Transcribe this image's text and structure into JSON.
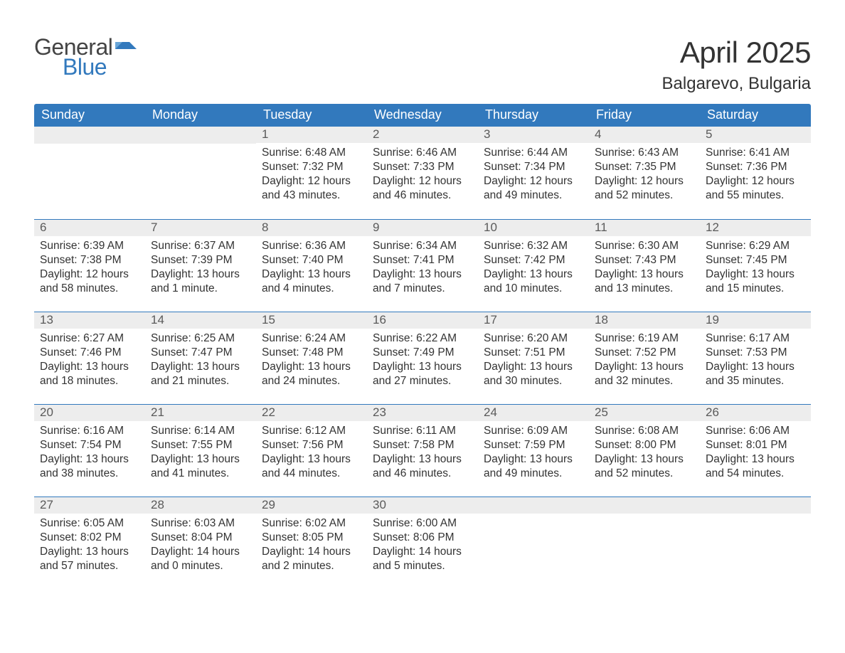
{
  "brand": {
    "word1": "General",
    "word2": "Blue",
    "word1_color": "#444444",
    "word2_color": "#3279bd",
    "flag_color": "#3279bd"
  },
  "title": "April 2025",
  "location": "Balgarevo, Bulgaria",
  "colors": {
    "header_bg": "#3279bd",
    "header_text": "#ffffff",
    "daynum_bg": "#ededed",
    "daynum_border": "#3279bd",
    "body_text": "#333333",
    "daynum_text": "#5a5a5a",
    "page_bg": "#ffffff"
  },
  "weekdays": [
    "Sunday",
    "Monday",
    "Tuesday",
    "Wednesday",
    "Thursday",
    "Friday",
    "Saturday"
  ],
  "weeks": [
    [
      null,
      null,
      {
        "n": "1",
        "sunrise": "6:48 AM",
        "sunset": "7:32 PM",
        "daylight": "12 hours and 43 minutes."
      },
      {
        "n": "2",
        "sunrise": "6:46 AM",
        "sunset": "7:33 PM",
        "daylight": "12 hours and 46 minutes."
      },
      {
        "n": "3",
        "sunrise": "6:44 AM",
        "sunset": "7:34 PM",
        "daylight": "12 hours and 49 minutes."
      },
      {
        "n": "4",
        "sunrise": "6:43 AM",
        "sunset": "7:35 PM",
        "daylight": "12 hours and 52 minutes."
      },
      {
        "n": "5",
        "sunrise": "6:41 AM",
        "sunset": "7:36 PM",
        "daylight": "12 hours and 55 minutes."
      }
    ],
    [
      {
        "n": "6",
        "sunrise": "6:39 AM",
        "sunset": "7:38 PM",
        "daylight": "12 hours and 58 minutes."
      },
      {
        "n": "7",
        "sunrise": "6:37 AM",
        "sunset": "7:39 PM",
        "daylight": "13 hours and 1 minute."
      },
      {
        "n": "8",
        "sunrise": "6:36 AM",
        "sunset": "7:40 PM",
        "daylight": "13 hours and 4 minutes."
      },
      {
        "n": "9",
        "sunrise": "6:34 AM",
        "sunset": "7:41 PM",
        "daylight": "13 hours and 7 minutes."
      },
      {
        "n": "10",
        "sunrise": "6:32 AM",
        "sunset": "7:42 PM",
        "daylight": "13 hours and 10 minutes."
      },
      {
        "n": "11",
        "sunrise": "6:30 AM",
        "sunset": "7:43 PM",
        "daylight": "13 hours and 13 minutes."
      },
      {
        "n": "12",
        "sunrise": "6:29 AM",
        "sunset": "7:45 PM",
        "daylight": "13 hours and 15 minutes."
      }
    ],
    [
      {
        "n": "13",
        "sunrise": "6:27 AM",
        "sunset": "7:46 PM",
        "daylight": "13 hours and 18 minutes."
      },
      {
        "n": "14",
        "sunrise": "6:25 AM",
        "sunset": "7:47 PM",
        "daylight": "13 hours and 21 minutes."
      },
      {
        "n": "15",
        "sunrise": "6:24 AM",
        "sunset": "7:48 PM",
        "daylight": "13 hours and 24 minutes."
      },
      {
        "n": "16",
        "sunrise": "6:22 AM",
        "sunset": "7:49 PM",
        "daylight": "13 hours and 27 minutes."
      },
      {
        "n": "17",
        "sunrise": "6:20 AM",
        "sunset": "7:51 PM",
        "daylight": "13 hours and 30 minutes."
      },
      {
        "n": "18",
        "sunrise": "6:19 AM",
        "sunset": "7:52 PM",
        "daylight": "13 hours and 32 minutes."
      },
      {
        "n": "19",
        "sunrise": "6:17 AM",
        "sunset": "7:53 PM",
        "daylight": "13 hours and 35 minutes."
      }
    ],
    [
      {
        "n": "20",
        "sunrise": "6:16 AM",
        "sunset": "7:54 PM",
        "daylight": "13 hours and 38 minutes."
      },
      {
        "n": "21",
        "sunrise": "6:14 AM",
        "sunset": "7:55 PM",
        "daylight": "13 hours and 41 minutes."
      },
      {
        "n": "22",
        "sunrise": "6:12 AM",
        "sunset": "7:56 PM",
        "daylight": "13 hours and 44 minutes."
      },
      {
        "n": "23",
        "sunrise": "6:11 AM",
        "sunset": "7:58 PM",
        "daylight": "13 hours and 46 minutes."
      },
      {
        "n": "24",
        "sunrise": "6:09 AM",
        "sunset": "7:59 PM",
        "daylight": "13 hours and 49 minutes."
      },
      {
        "n": "25",
        "sunrise": "6:08 AM",
        "sunset": "8:00 PM",
        "daylight": "13 hours and 52 minutes."
      },
      {
        "n": "26",
        "sunrise": "6:06 AM",
        "sunset": "8:01 PM",
        "daylight": "13 hours and 54 minutes."
      }
    ],
    [
      {
        "n": "27",
        "sunrise": "6:05 AM",
        "sunset": "8:02 PM",
        "daylight": "13 hours and 57 minutes."
      },
      {
        "n": "28",
        "sunrise": "6:03 AM",
        "sunset": "8:04 PM",
        "daylight": "14 hours and 0 minutes."
      },
      {
        "n": "29",
        "sunrise": "6:02 AM",
        "sunset": "8:05 PM",
        "daylight": "14 hours and 2 minutes."
      },
      {
        "n": "30",
        "sunrise": "6:00 AM",
        "sunset": "8:06 PM",
        "daylight": "14 hours and 5 minutes."
      },
      null,
      null,
      null
    ]
  ],
  "labels": {
    "sunrise": "Sunrise: ",
    "sunset": "Sunset: ",
    "daylight": "Daylight: "
  }
}
